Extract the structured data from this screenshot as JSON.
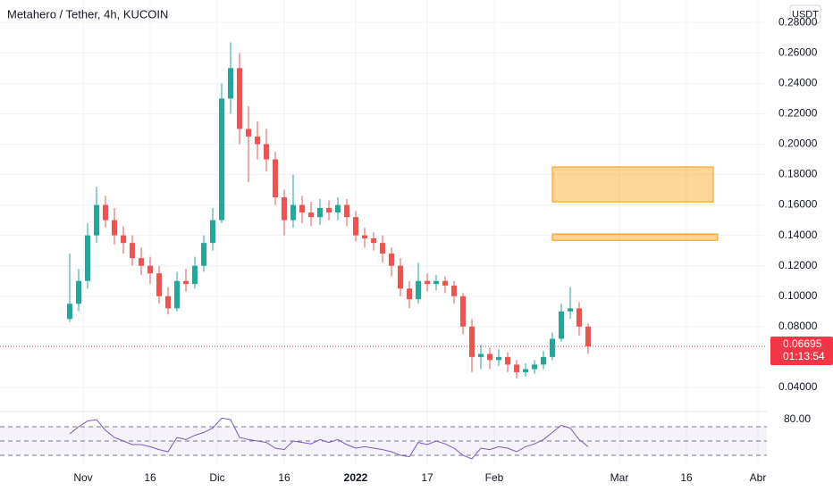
{
  "header": {
    "title": "Metahero / Tether, 4h, KUCOIN",
    "currency": "USDT",
    "countdown": "01:13:54"
  },
  "chart_data": [
    {
      "type": "candlestick",
      "up_color": "#26a69a",
      "down_color": "#ef5350",
      "x": [
        -3,
        -1,
        1,
        3,
        5,
        7,
        9,
        11,
        13,
        15,
        17,
        19,
        21,
        23,
        25,
        27,
        29,
        31,
        33,
        35,
        37,
        39,
        41,
        43,
        45,
        47,
        49,
        51,
        53,
        55,
        57,
        59,
        61,
        63,
        65,
        67,
        69,
        71,
        73,
        75,
        77,
        79,
        81,
        83,
        85,
        87,
        89,
        91,
        93,
        95,
        97,
        99,
        101,
        103,
        105,
        107,
        109,
        111,
        113
      ],
      "open": [
        0.085,
        0.095,
        0.11,
        0.14,
        0.16,
        0.15,
        0.14,
        0.135,
        0.125,
        0.12,
        0.115,
        0.1,
        0.092,
        0.11,
        0.108,
        0.12,
        0.135,
        0.15,
        0.23,
        0.25,
        0.21,
        0.205,
        0.2,
        0.19,
        0.165,
        0.15,
        0.16,
        0.155,
        0.152,
        0.158,
        0.155,
        0.16,
        0.152,
        0.14,
        0.138,
        0.135,
        0.128,
        0.12,
        0.105,
        0.098,
        0.11,
        0.108,
        0.11,
        0.107,
        0.1,
        0.08,
        0.06,
        0.062,
        0.058,
        0.06,
        0.055,
        0.05,
        0.052,
        0.055,
        0.06,
        0.072,
        0.09,
        0.092,
        0.08
      ],
      "high": [
        0.128,
        0.118,
        0.148,
        0.172,
        0.166,
        0.158,
        0.146,
        0.14,
        0.132,
        0.126,
        0.12,
        0.106,
        0.116,
        0.118,
        0.126,
        0.14,
        0.158,
        0.24,
        0.267,
        0.26,
        0.225,
        0.215,
        0.21,
        0.195,
        0.17,
        0.18,
        0.166,
        0.162,
        0.164,
        0.163,
        0.165,
        0.164,
        0.156,
        0.145,
        0.142,
        0.14,
        0.132,
        0.125,
        0.11,
        0.122,
        0.115,
        0.114,
        0.113,
        0.11,
        0.102,
        0.085,
        0.068,
        0.066,
        0.065,
        0.063,
        0.058,
        0.056,
        0.058,
        0.064,
        0.076,
        0.095,
        0.106,
        0.096,
        0.082
      ],
      "low": [
        0.083,
        0.09,
        0.105,
        0.135,
        0.145,
        0.134,
        0.128,
        0.12,
        0.114,
        0.108,
        0.095,
        0.088,
        0.09,
        0.103,
        0.105,
        0.116,
        0.13,
        0.148,
        0.22,
        0.2,
        0.175,
        0.19,
        0.182,
        0.16,
        0.14,
        0.145,
        0.148,
        0.146,
        0.147,
        0.15,
        0.15,
        0.146,
        0.136,
        0.132,
        0.13,
        0.122,
        0.113,
        0.1,
        0.092,
        0.095,
        0.103,
        0.104,
        0.102,
        0.095,
        0.075,
        0.05,
        0.052,
        0.052,
        0.054,
        0.05,
        0.046,
        0.047,
        0.049,
        0.052,
        0.058,
        0.07,
        0.085,
        0.074,
        0.062
      ],
      "close": [
        0.095,
        0.11,
        0.14,
        0.16,
        0.15,
        0.14,
        0.135,
        0.125,
        0.12,
        0.115,
        0.1,
        0.092,
        0.11,
        0.108,
        0.12,
        0.135,
        0.15,
        0.23,
        0.25,
        0.21,
        0.205,
        0.2,
        0.19,
        0.165,
        0.15,
        0.16,
        0.155,
        0.152,
        0.158,
        0.155,
        0.16,
        0.152,
        0.14,
        0.138,
        0.135,
        0.128,
        0.12,
        0.105,
        0.098,
        0.11,
        0.108,
        0.11,
        0.107,
        0.1,
        0.08,
        0.06,
        0.062,
        0.058,
        0.06,
        0.055,
        0.05,
        0.052,
        0.055,
        0.06,
        0.072,
        0.09,
        0.092,
        0.08,
        0.067
      ],
      "last_price": 0.06695,
      "last_price_color": "#f23645",
      "boxes": [
        {
          "x": [
            105,
            141
          ],
          "y": [
            0.162,
            0.185
          ]
        },
        {
          "x": [
            105,
            142
          ],
          "y": [
            0.1367,
            0.1409
          ]
        }
      ],
      "box_color": "#ff9800",
      "xlim": [
        -18.6,
        153
      ],
      "ylim": [
        0.0247,
        0.2948
      ],
      "yticks": [
        {
          "value": 0.04,
          "label": "0.04000"
        },
        {
          "value": 0.08,
          "label": "0.08000"
        },
        {
          "value": 0.1,
          "label": "0.10000"
        },
        {
          "value": 0.12,
          "label": "0.12000"
        },
        {
          "value": 0.14,
          "label": "0.14000"
        },
        {
          "value": 0.16,
          "label": "0.16000"
        },
        {
          "value": 0.18,
          "label": "0.18000"
        },
        {
          "value": 0.2,
          "label": "0.20000"
        },
        {
          "value": 0.22,
          "label": "0.22000"
        },
        {
          "value": 0.24,
          "label": "0.24000"
        },
        {
          "value": 0.26,
          "label": "0.26000"
        },
        {
          "value": 0.28,
          "label": "0.28000"
        }
      ],
      "grid": true
    },
    {
      "type": "line",
      "color": "#7e57c2",
      "x": [
        -3,
        -1,
        1,
        3,
        5,
        7,
        9,
        11,
        13,
        15,
        17,
        19,
        21,
        23,
        25,
        27,
        29,
        31,
        33,
        35,
        37,
        39,
        41,
        43,
        45,
        47,
        49,
        51,
        53,
        55,
        57,
        59,
        61,
        63,
        65,
        67,
        69,
        71,
        73,
        75,
        77,
        79,
        81,
        83,
        85,
        87,
        89,
        91,
        93,
        95,
        97,
        99,
        101,
        103,
        105,
        107,
        109,
        111,
        113
      ],
      "values": [
        60,
        70,
        78,
        80,
        65,
        55,
        50,
        45,
        45,
        42,
        38,
        35,
        55,
        52,
        58,
        62,
        68,
        82,
        80,
        55,
        52,
        50,
        48,
        40,
        38,
        50,
        48,
        46,
        52,
        48,
        52,
        45,
        40,
        42,
        40,
        38,
        35,
        30,
        28,
        48,
        45,
        50,
        46,
        40,
        30,
        25,
        40,
        38,
        42,
        40,
        35,
        42,
        46,
        52,
        62,
        72,
        68,
        52,
        42
      ],
      "levels": [
        30,
        50,
        70
      ],
      "band_color": "#7e57c2",
      "xlim": [
        -18.6,
        153
      ],
      "ylim": [
        17.5,
        90
      ],
      "yticks": [
        {
          "value": 80,
          "label": "80.00"
        }
      ],
      "xticks": [
        {
          "value": 0,
          "label": "Nov"
        },
        {
          "value": 15,
          "label": "16"
        },
        {
          "value": 30,
          "label": "Dic"
        },
        {
          "value": 45,
          "label": "16"
        },
        {
          "value": 61,
          "label": "2022"
        },
        {
          "value": 77,
          "label": "17"
        },
        {
          "value": 92,
          "label": "Feb"
        },
        {
          "value": 120,
          "label": "Mar"
        },
        {
          "value": 135,
          "label": "16"
        },
        {
          "value": 151,
          "label": "Abr"
        }
      ],
      "grid": true
    }
  ]
}
